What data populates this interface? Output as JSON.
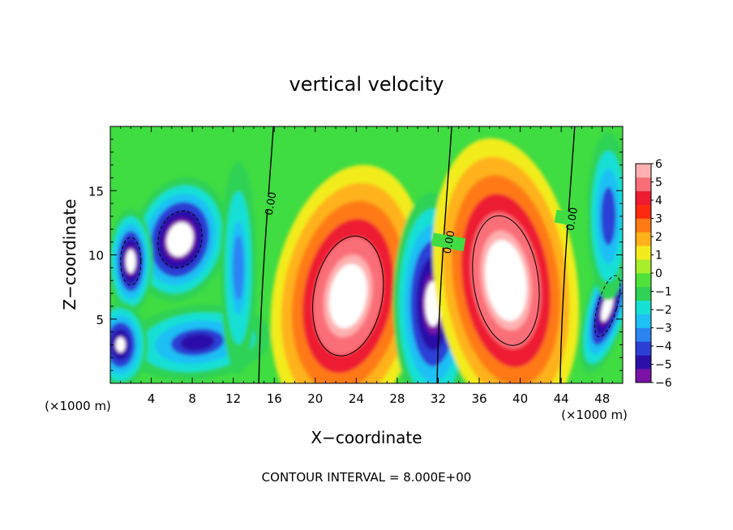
{
  "chart_data": {
    "type": "heatmap",
    "title": "vertical velocity",
    "xlabel": "X−coordinate",
    "ylabel": "Z−coordinate",
    "x_unit_left": "(×1000 m)",
    "x_unit_right": "(×1000 m)",
    "footer": "CONTOUR INTERVAL = 8.000E+00",
    "xlim": [
      0,
      50
    ],
    "ylim": [
      0,
      20
    ],
    "x_ticks": [
      4,
      8,
      12,
      16,
      20,
      24,
      28,
      32,
      36,
      40,
      44,
      48
    ],
    "y_ticks": [
      5,
      10,
      15
    ],
    "grid": false,
    "colorbar": {
      "labels": [
        "6",
        "5",
        "4",
        "3",
        "2",
        "1",
        "0",
        "−1",
        "−2",
        "−3",
        "−4",
        "−5",
        "−6"
      ],
      "min": -6,
      "max": 6,
      "colors": [
        "#7a12a6",
        "#2a10a8",
        "#2c3fd6",
        "#2a84f2",
        "#1fc0f5",
        "#17e0d5",
        "#2fd255",
        "#50e23a",
        "#a6ef2a",
        "#f2ec1d",
        "#ffb21a",
        "#ff7a14",
        "#ff2a10",
        "#ee1a30",
        "#fa6e78",
        "#ffb0b0"
      ]
    },
    "contour_labels": [
      {
        "text": "0.00",
        "x": 15.6,
        "z": 14.0
      },
      {
        "text": "0.00",
        "x": 33.0,
        "z": 11.0
      },
      {
        "text": "0.00",
        "x": 45.0,
        "z": 12.8
      }
    ],
    "cells": [
      {
        "x": 6.8,
        "z": 11.2,
        "rx": 3.4,
        "rz": 3.6,
        "value": -7.5,
        "rot": 14
      },
      {
        "x": 2.0,
        "z": 9.5,
        "rx": 1.6,
        "rz": 3.0,
        "value": -7,
        "rot": 0
      },
      {
        "x": 8.5,
        "z": 3.2,
        "rx": 5.5,
        "rz": 2.2,
        "value": -4.6,
        "rot": -6
      },
      {
        "x": 1.0,
        "z": 3.0,
        "rx": 2.0,
        "rz": 2.5,
        "value": -6.2,
        "rot": 0
      },
      {
        "x": 12.5,
        "z": 9.0,
        "rx": 1.4,
        "rz": 6.5,
        "value": -3.5,
        "rot": 0
      },
      {
        "x": 23.2,
        "z": 6.8,
        "rx": 5.4,
        "rz": 7.6,
        "value": 7.2,
        "rot": 10
      },
      {
        "x": 31.5,
        "z": 6.2,
        "rx": 2.9,
        "rz": 6.4,
        "value": -6.8,
        "rot": 0
      },
      {
        "x": 38.6,
        "z": 8.0,
        "rx": 5.1,
        "rz": 8.2,
        "value": 7.6,
        "rot": -8
      },
      {
        "x": 48.5,
        "z": 6.0,
        "rx": 1.5,
        "rz": 4.0,
        "value": -7,
        "rot": 16
      },
      {
        "x": 48.6,
        "z": 13.0,
        "rx": 1.6,
        "rz": 5.0,
        "value": -4.5,
        "rot": 0
      }
    ]
  }
}
